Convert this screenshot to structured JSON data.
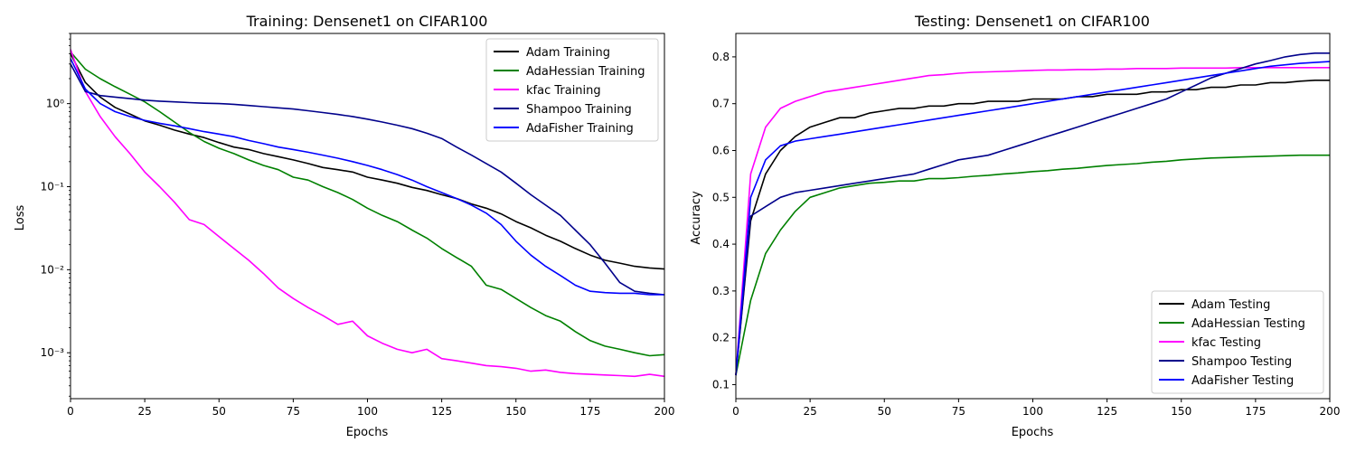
{
  "chart_data": [
    {
      "type": "line",
      "title": "Training: Densenet1 on CIFAR100",
      "xlabel": "Epochs",
      "ylabel": "Loss",
      "yscale": "log",
      "xlim": [
        0,
        200
      ],
      "ylim": [
        0.00028,
        7
      ],
      "x_ticks": [
        0,
        25,
        50,
        75,
        100,
        125,
        150,
        175,
        200
      ],
      "y_ticks": [
        {
          "value": 1,
          "label": "10⁰"
        },
        {
          "value": 0.1,
          "label": "10⁻¹"
        },
        {
          "value": 0.01,
          "label": "10⁻²"
        },
        {
          "value": 0.001,
          "label": "10⁻³"
        }
      ],
      "grid": false,
      "legend": "top-right",
      "series": [
        {
          "name": "Adam Training",
          "color": "#000000",
          "x": [
            0,
            5,
            10,
            15,
            20,
            25,
            30,
            35,
            40,
            45,
            50,
            55,
            60,
            65,
            70,
            75,
            80,
            85,
            90,
            95,
            100,
            105,
            110,
            115,
            120,
            125,
            130,
            135,
            140,
            145,
            150,
            155,
            160,
            165,
            170,
            175,
            180,
            185,
            190,
            195,
            200
          ],
          "y": [
            4.0,
            1.8,
            1.2,
            0.9,
            0.75,
            0.62,
            0.55,
            0.48,
            0.43,
            0.39,
            0.34,
            0.3,
            0.28,
            0.25,
            0.23,
            0.21,
            0.19,
            0.17,
            0.16,
            0.15,
            0.13,
            0.12,
            0.11,
            0.098,
            0.09,
            0.08,
            0.072,
            0.062,
            0.055,
            0.047,
            0.038,
            0.032,
            0.026,
            0.022,
            0.018,
            0.015,
            0.013,
            0.012,
            0.011,
            0.0105,
            0.0102
          ]
        },
        {
          "name": "AdaHessian Training",
          "color": "#008000",
          "x": [
            0,
            5,
            10,
            15,
            20,
            25,
            30,
            35,
            40,
            45,
            50,
            55,
            60,
            65,
            70,
            75,
            80,
            85,
            90,
            95,
            100,
            105,
            110,
            115,
            120,
            125,
            130,
            135,
            140,
            145,
            150,
            155,
            160,
            165,
            170,
            175,
            180,
            185,
            190,
            195,
            200
          ],
          "y": [
            4.2,
            2.6,
            2.0,
            1.6,
            1.3,
            1.05,
            0.8,
            0.6,
            0.45,
            0.35,
            0.29,
            0.25,
            0.21,
            0.18,
            0.16,
            0.13,
            0.12,
            0.1,
            0.085,
            0.07,
            0.055,
            0.045,
            0.038,
            0.03,
            0.024,
            0.018,
            0.014,
            0.011,
            0.0065,
            0.0058,
            0.0045,
            0.0035,
            0.0028,
            0.0024,
            0.0018,
            0.0014,
            0.0012,
            0.0011,
            0.001,
            0.00092,
            0.00095
          ]
        },
        {
          "name": "kfac Training",
          "color": "#ff00ff",
          "x": [
            0,
            5,
            10,
            15,
            20,
            25,
            30,
            35,
            40,
            45,
            50,
            55,
            60,
            65,
            70,
            75,
            80,
            85,
            90,
            95,
            100,
            105,
            110,
            115,
            120,
            125,
            130,
            135,
            140,
            145,
            150,
            155,
            160,
            165,
            170,
            175,
            180,
            185,
            190,
            195,
            200
          ],
          "y": [
            4.5,
            1.4,
            0.7,
            0.4,
            0.25,
            0.15,
            0.1,
            0.065,
            0.04,
            0.035,
            0.025,
            0.018,
            0.013,
            0.009,
            0.006,
            0.0045,
            0.0035,
            0.0028,
            0.0022,
            0.0024,
            0.0016,
            0.0013,
            0.0011,
            0.001,
            0.0011,
            0.00085,
            0.0008,
            0.00075,
            0.0007,
            0.00068,
            0.00065,
            0.0006,
            0.00062,
            0.00058,
            0.00056,
            0.00055,
            0.00054,
            0.00053,
            0.00052,
            0.00055,
            0.00052
          ]
        },
        {
          "name": "Shampoo Training",
          "color": "#00008b",
          "x": [
            0,
            5,
            10,
            15,
            20,
            25,
            30,
            35,
            40,
            45,
            50,
            55,
            60,
            65,
            70,
            75,
            80,
            85,
            90,
            95,
            100,
            105,
            110,
            115,
            120,
            125,
            130,
            135,
            140,
            145,
            150,
            155,
            160,
            165,
            170,
            175,
            180,
            185,
            190,
            195,
            200
          ],
          "y": [
            3.0,
            1.4,
            1.25,
            1.2,
            1.15,
            1.1,
            1.07,
            1.05,
            1.03,
            1.01,
            1.0,
            0.98,
            0.95,
            0.92,
            0.89,
            0.86,
            0.82,
            0.78,
            0.74,
            0.7,
            0.65,
            0.6,
            0.55,
            0.5,
            0.44,
            0.38,
            0.3,
            0.24,
            0.19,
            0.15,
            0.11,
            0.08,
            0.06,
            0.045,
            0.03,
            0.02,
            0.012,
            0.007,
            0.0055,
            0.0052,
            0.005
          ]
        },
        {
          "name": "AdaFisher Training",
          "color": "#0000ff",
          "x": [
            0,
            5,
            10,
            15,
            20,
            25,
            30,
            35,
            40,
            45,
            50,
            55,
            60,
            65,
            70,
            75,
            80,
            85,
            90,
            95,
            100,
            105,
            110,
            115,
            120,
            125,
            130,
            135,
            140,
            145,
            150,
            155,
            160,
            165,
            170,
            175,
            180,
            185,
            190,
            195,
            200
          ],
          "y": [
            3.5,
            1.5,
            1.0,
            0.8,
            0.7,
            0.63,
            0.58,
            0.54,
            0.5,
            0.46,
            0.43,
            0.4,
            0.36,
            0.33,
            0.3,
            0.28,
            0.26,
            0.24,
            0.22,
            0.2,
            0.18,
            0.16,
            0.14,
            0.12,
            0.1,
            0.085,
            0.072,
            0.06,
            0.048,
            0.035,
            0.022,
            0.015,
            0.011,
            0.0085,
            0.0065,
            0.0055,
            0.0053,
            0.0052,
            0.0052,
            0.005,
            0.005
          ]
        }
      ]
    },
    {
      "type": "line",
      "title": "Testing: Densenet1 on CIFAR100",
      "xlabel": "Epochs",
      "ylabel": "Accuracy",
      "yscale": "linear",
      "xlim": [
        0,
        200
      ],
      "ylim": [
        0.07,
        0.85
      ],
      "x_ticks": [
        0,
        25,
        50,
        75,
        100,
        125,
        150,
        175,
        200
      ],
      "y_ticks": [
        {
          "value": 0.1,
          "label": "0.1"
        },
        {
          "value": 0.2,
          "label": "0.2"
        },
        {
          "value": 0.3,
          "label": "0.3"
        },
        {
          "value": 0.4,
          "label": "0.4"
        },
        {
          "value": 0.5,
          "label": "0.5"
        },
        {
          "value": 0.6,
          "label": "0.6"
        },
        {
          "value": 0.7,
          "label": "0.7"
        },
        {
          "value": 0.8,
          "label": "0.8"
        }
      ],
      "grid": false,
      "legend": "bottom-right",
      "series": [
        {
          "name": "Adam Testing",
          "color": "#000000",
          "x": [
            0,
            5,
            10,
            15,
            20,
            25,
            30,
            35,
            40,
            45,
            50,
            55,
            60,
            65,
            70,
            75,
            80,
            85,
            90,
            95,
            100,
            105,
            110,
            115,
            120,
            125,
            130,
            135,
            140,
            145,
            150,
            155,
            160,
            165,
            170,
            175,
            180,
            185,
            190,
            195,
            200
          ],
          "y": [
            0.12,
            0.45,
            0.55,
            0.6,
            0.63,
            0.65,
            0.66,
            0.67,
            0.67,
            0.68,
            0.685,
            0.69,
            0.69,
            0.695,
            0.695,
            0.7,
            0.7,
            0.705,
            0.705,
            0.705,
            0.71,
            0.71,
            0.71,
            0.715,
            0.715,
            0.72,
            0.72,
            0.72,
            0.725,
            0.725,
            0.73,
            0.73,
            0.735,
            0.735,
            0.74,
            0.74,
            0.745,
            0.745,
            0.748,
            0.75,
            0.75
          ]
        },
        {
          "name": "AdaHessian Testing",
          "color": "#008000",
          "x": [
            0,
            5,
            10,
            15,
            20,
            25,
            30,
            35,
            40,
            45,
            50,
            55,
            60,
            65,
            70,
            75,
            80,
            85,
            90,
            95,
            100,
            105,
            110,
            115,
            120,
            125,
            130,
            135,
            140,
            145,
            150,
            155,
            160,
            165,
            170,
            175,
            180,
            185,
            190,
            195,
            200
          ],
          "y": [
            0.12,
            0.28,
            0.38,
            0.43,
            0.47,
            0.5,
            0.51,
            0.52,
            0.525,
            0.53,
            0.532,
            0.535,
            0.535,
            0.54,
            0.54,
            0.542,
            0.545,
            0.547,
            0.55,
            0.552,
            0.555,
            0.557,
            0.56,
            0.562,
            0.565,
            0.568,
            0.57,
            0.572,
            0.575,
            0.577,
            0.58,
            0.582,
            0.584,
            0.585,
            0.586,
            0.587,
            0.588,
            0.589,
            0.59,
            0.59,
            0.59
          ]
        },
        {
          "name": "kfac Testing",
          "color": "#ff00ff",
          "x": [
            0,
            5,
            10,
            15,
            20,
            25,
            30,
            35,
            40,
            45,
            50,
            55,
            60,
            65,
            70,
            75,
            80,
            85,
            90,
            95,
            100,
            105,
            110,
            115,
            120,
            125,
            130,
            135,
            140,
            145,
            150,
            155,
            160,
            165,
            170,
            175,
            180,
            185,
            190,
            195,
            200
          ],
          "y": [
            0.12,
            0.55,
            0.65,
            0.69,
            0.705,
            0.715,
            0.725,
            0.73,
            0.735,
            0.74,
            0.745,
            0.75,
            0.755,
            0.76,
            0.762,
            0.765,
            0.767,
            0.768,
            0.769,
            0.77,
            0.771,
            0.772,
            0.772,
            0.773,
            0.773,
            0.774,
            0.774,
            0.775,
            0.775,
            0.775,
            0.776,
            0.776,
            0.776,
            0.776,
            0.777,
            0.777,
            0.777,
            0.777,
            0.777,
            0.777,
            0.777
          ]
        },
        {
          "name": "Shampoo Testing",
          "color": "#00008b",
          "x": [
            0,
            5,
            10,
            15,
            20,
            25,
            30,
            35,
            40,
            45,
            50,
            55,
            60,
            65,
            70,
            75,
            80,
            85,
            90,
            95,
            100,
            105,
            110,
            115,
            120,
            125,
            130,
            135,
            140,
            145,
            150,
            155,
            160,
            165,
            170,
            175,
            180,
            185,
            190,
            195,
            200
          ],
          "y": [
            0.12,
            0.46,
            0.48,
            0.5,
            0.51,
            0.515,
            0.52,
            0.525,
            0.53,
            0.535,
            0.54,
            0.545,
            0.55,
            0.56,
            0.57,
            0.58,
            0.585,
            0.59,
            0.6,
            0.61,
            0.62,
            0.63,
            0.64,
            0.65,
            0.66,
            0.67,
            0.68,
            0.69,
            0.7,
            0.71,
            0.725,
            0.74,
            0.755,
            0.765,
            0.775,
            0.785,
            0.792,
            0.8,
            0.805,
            0.808,
            0.808
          ]
        },
        {
          "name": "AdaFisher Testing",
          "color": "#0000ff",
          "x": [
            0,
            5,
            10,
            15,
            20,
            25,
            30,
            35,
            40,
            45,
            50,
            55,
            60,
            65,
            70,
            75,
            80,
            85,
            90,
            95,
            100,
            105,
            110,
            115,
            120,
            125,
            130,
            135,
            140,
            145,
            150,
            155,
            160,
            165,
            170,
            175,
            180,
            185,
            190,
            195,
            200
          ],
          "y": [
            0.12,
            0.5,
            0.58,
            0.61,
            0.62,
            0.625,
            0.63,
            0.635,
            0.64,
            0.645,
            0.65,
            0.655,
            0.66,
            0.665,
            0.67,
            0.675,
            0.68,
            0.685,
            0.69,
            0.695,
            0.7,
            0.705,
            0.71,
            0.715,
            0.72,
            0.725,
            0.73,
            0.735,
            0.74,
            0.745,
            0.75,
            0.755,
            0.76,
            0.765,
            0.77,
            0.775,
            0.78,
            0.783,
            0.786,
            0.788,
            0.79
          ]
        }
      ]
    }
  ]
}
